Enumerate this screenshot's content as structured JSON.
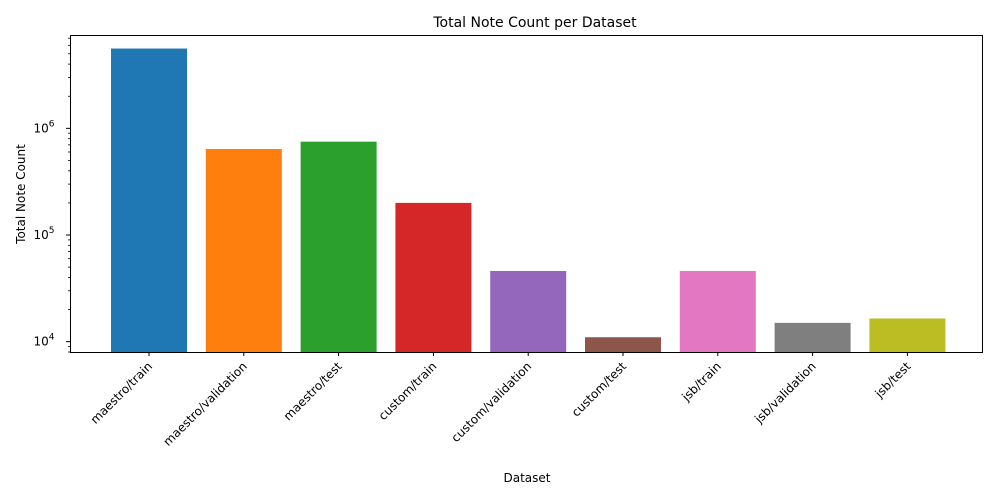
{
  "chart_data": {
    "type": "bar",
    "title": "Total Note Count per Dataset",
    "xlabel": "Dataset",
    "ylabel": "Total Note Count",
    "yscale": "log",
    "ylim": [
      8000,
      7500000
    ],
    "grid": false,
    "categories": [
      "maestro/train",
      "maestro/validation",
      "maestro/test",
      "custom/train",
      "custom/validation",
      "custom/test",
      "jsb/train",
      "jsb/validation",
      "jsb/test"
    ],
    "values": [
      5600000,
      640000,
      750000,
      200000,
      46000,
      11000,
      46000,
      15000,
      16500
    ],
    "colors": [
      "#1f77b4",
      "#ff7f0e",
      "#2ca02c",
      "#d62728",
      "#9467bd",
      "#8c564b",
      "#e377c2",
      "#7f7f7f",
      "#bcbd22"
    ],
    "major_ticks": [
      {
        "value": 10000,
        "base": "10",
        "exp": "4"
      },
      {
        "value": 100000,
        "base": "10",
        "exp": "5"
      },
      {
        "value": 1000000,
        "base": "10",
        "exp": "6"
      }
    ]
  }
}
